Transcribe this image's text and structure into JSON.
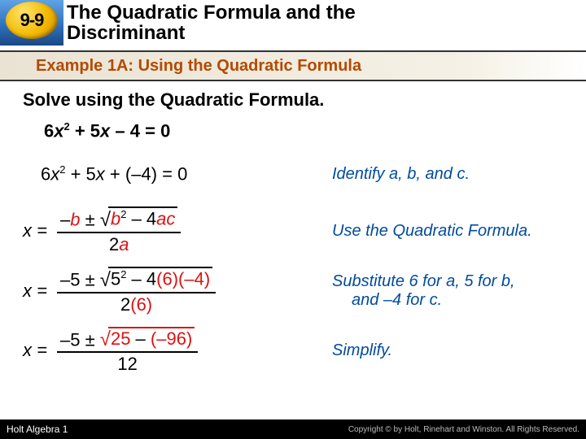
{
  "badge": {
    "label": "9-9"
  },
  "header": {
    "title_line1": "The Quadratic Formula and the",
    "title_line2": "Discriminant"
  },
  "example_bar": {
    "text": "Example 1A: Using the Quadratic Formula"
  },
  "instruction": "Solve using the Quadratic Formula.",
  "equation_bold": {
    "pre": "6",
    "x": "x",
    "sq": "2",
    "mid": " + 5",
    "x2": "x",
    "post": " – 4 = 0"
  },
  "equation_plain": {
    "pre": "6",
    "x": "x",
    "sq": "2",
    "mid": " + 5",
    "x2": "x",
    "open": " + (",
    "neg": "–4",
    "close": ") = 0"
  },
  "rows": {
    "r0_note": "Identify a, b, and c.",
    "r1": {
      "lead": "x =",
      "num_pre": "–",
      "num_b": "b",
      "num_pm": " ± ",
      "sqrt_b": "b",
      "sqrt_sq": "2",
      "sqrt_minus": " – 4",
      "sqrt_ac": "ac",
      "den_two": "2",
      "den_a": "a",
      "note": "Use the Quadratic Formula."
    },
    "r2": {
      "lead": "x =",
      "num_pre": "–5 ± ",
      "sqrt_five": "5",
      "sqrt_sq": "2",
      "sqrt_minus": " – 4",
      "sqrt_p1": "(6)",
      "sqrt_p2": "(–4)",
      "den_two": "2",
      "den_six": "(6)",
      "note_a": "Substitute 6 for a, 5 for b,",
      "note_b": "and –4 for c."
    },
    "r3": {
      "lead": "x =",
      "num_pre": "–5 ± ",
      "sqrt_a": "25",
      "sqrt_mid": " – ",
      "sqrt_b": "(–96)",
      "den": "12",
      "note": "Simplify."
    }
  },
  "footer": {
    "left": "Holt Algebra 1",
    "right": "Copyright © by Holt, Rinehart and Winston. All Rights Reserved."
  },
  "colors": {
    "accent_orange": "#b44a00",
    "note_blue": "#004b9c",
    "formula_red": "#d11"
  }
}
